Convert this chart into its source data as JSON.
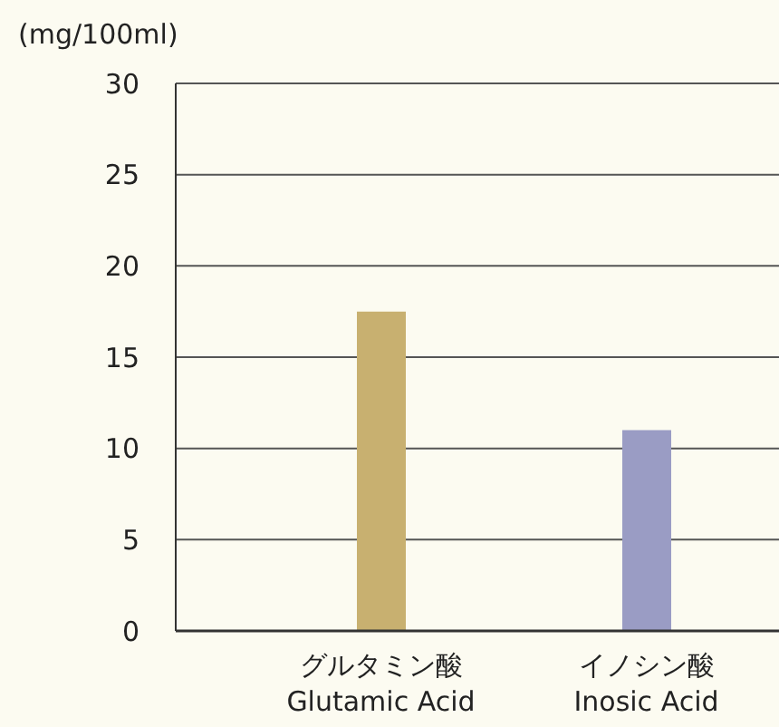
{
  "chart_data": {
    "type": "bar",
    "ylabel": "(mg/100ml)",
    "categories": [
      "グルタミン酸\nGlutamic Acid",
      "イノシン酸\nInosic Acid"
    ],
    "values": [
      17.5,
      11
    ],
    "colors": [
      "#c8b070",
      "#9a9cc4"
    ],
    "ylim": [
      0,
      30
    ],
    "yticks": [
      0,
      5,
      10,
      15,
      20,
      25,
      30
    ],
    "grid": "y"
  }
}
